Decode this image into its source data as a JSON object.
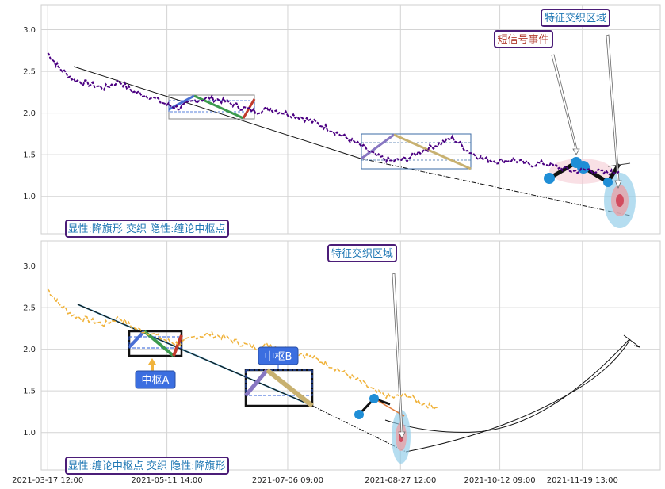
{
  "chart_data": [
    {
      "type": "line",
      "ylim": [
        0.55,
        3.3
      ],
      "xlim": [
        "2021-03-14 12:00",
        "2021-12-25 12:00"
      ],
      "yticks": [
        "1.0",
        "1.5",
        "2.0",
        "2.5",
        "3.0"
      ],
      "grid": true,
      "series": [
        {
          "color": "#4b0082",
          "x": [
            "2021-03-17 12:00",
            "2021-03-22 12:00",
            "2021-03-29 12:00",
            "2021-04-05 12:00",
            "2021-04-12 12:00",
            "2021-04-19 12:00",
            "2021-04-26 12:00",
            "2021-05-03 12:00",
            "2021-05-11 14:00",
            "2021-05-17 12:00",
            "2021-05-24 12:00",
            "2021-05-31 12:00",
            "2021-06-07 12:00",
            "2021-06-14 12:00",
            "2021-06-21 12:00",
            "2021-06-28 12:00",
            "2021-07-05 12:00",
            "2021-07-12 12:00",
            "2021-07-19 12:00",
            "2021-07-26 12:00",
            "2021-08-02 12:00",
            "2021-08-09 12:00",
            "2021-08-16 12:00",
            "2021-08-23 12:00",
            "2021-08-30 12:00",
            "2021-09-06 12:00",
            "2021-09-13 12:00",
            "2021-09-20 12:00",
            "2021-09-27 12:00",
            "2021-10-04 12:00",
            "2021-10-11 12:00",
            "2021-10-18 12:00",
            "2021-10-25 12:00",
            "2021-11-01 12:00",
            "2021-11-08 12:00",
            "2021-11-15 12:00",
            "2021-11-22 12:00",
            "2021-11-29 12:00",
            "2021-12-06 12:00"
          ],
          "values": [
            2.72,
            2.55,
            2.4,
            2.35,
            2.3,
            2.38,
            2.25,
            2.2,
            2.1,
            2.06,
            2.15,
            2.18,
            2.14,
            2.07,
            2.02,
            2.05,
            2.0,
            1.95,
            1.88,
            1.8,
            1.7,
            1.6,
            1.48,
            1.42,
            1.45,
            1.55,
            1.62,
            1.7,
            1.55,
            1.45,
            1.42,
            1.44,
            1.38,
            1.4,
            1.35,
            1.3,
            1.32,
            1.28,
            1.3
          ]
        }
      ],
      "annotations": [
        {
          "text": "特征交织区域",
          "color": "#7a2f8a"
        },
        {
          "text": "短信号事件",
          "color": "#c0392b"
        },
        {
          "text": "显性:降旗形 交织 隐性:缠论中枢点",
          "color": "#1f77b4"
        }
      ]
    },
    {
      "type": "line",
      "ylim": [
        0.55,
        3.3
      ],
      "xlim": [
        "2021-03-14 12:00",
        "2021-12-25 12:00"
      ],
      "yticks": [
        "1.0",
        "1.5",
        "2.0",
        "2.5",
        "3.0"
      ],
      "xticks": [
        "2021-03-17 12:00",
        "2021-05-11 14:00",
        "2021-07-06 09:00",
        "2021-08-27 12:00",
        "2021-10-12 09:00",
        "2021-11-19 13:00"
      ],
      "grid": true,
      "series": [
        {
          "color": "#f0b33c",
          "x": [
            "2021-03-17 12:00",
            "2021-03-22 12:00",
            "2021-03-29 12:00",
            "2021-04-05 12:00",
            "2021-04-12 12:00",
            "2021-04-19 12:00",
            "2021-04-26 12:00",
            "2021-05-03 12:00",
            "2021-05-11 14:00",
            "2021-05-17 12:00",
            "2021-05-24 12:00",
            "2021-05-31 12:00",
            "2021-06-07 12:00",
            "2021-06-14 12:00",
            "2021-06-21 12:00",
            "2021-06-28 12:00",
            "2021-07-05 12:00",
            "2021-07-12 12:00",
            "2021-07-19 12:00",
            "2021-07-26 12:00",
            "2021-08-02 12:00",
            "2021-08-09 12:00",
            "2021-08-16 12:00",
            "2021-08-23 12:00",
            "2021-08-30 12:00",
            "2021-09-06 12:00",
            "2021-09-13 12:00"
          ],
          "values": [
            2.72,
            2.55,
            2.4,
            2.35,
            2.3,
            2.38,
            2.25,
            2.2,
            2.1,
            2.06,
            2.15,
            2.18,
            2.14,
            2.07,
            2.02,
            2.05,
            2.0,
            1.95,
            1.88,
            1.8,
            1.7,
            1.6,
            1.48,
            1.42,
            1.45,
            1.35,
            1.3
          ]
        }
      ],
      "annotations": [
        {
          "text": "特征交织区域",
          "color": "#1f77b4"
        },
        {
          "text": "中枢A",
          "color": "#ffffff"
        },
        {
          "text": "中枢B",
          "color": "#ffffff"
        },
        {
          "text": "显性:缠论中枢点 交织 隐性:降旗形",
          "color": "#1f77b4"
        }
      ]
    }
  ]
}
